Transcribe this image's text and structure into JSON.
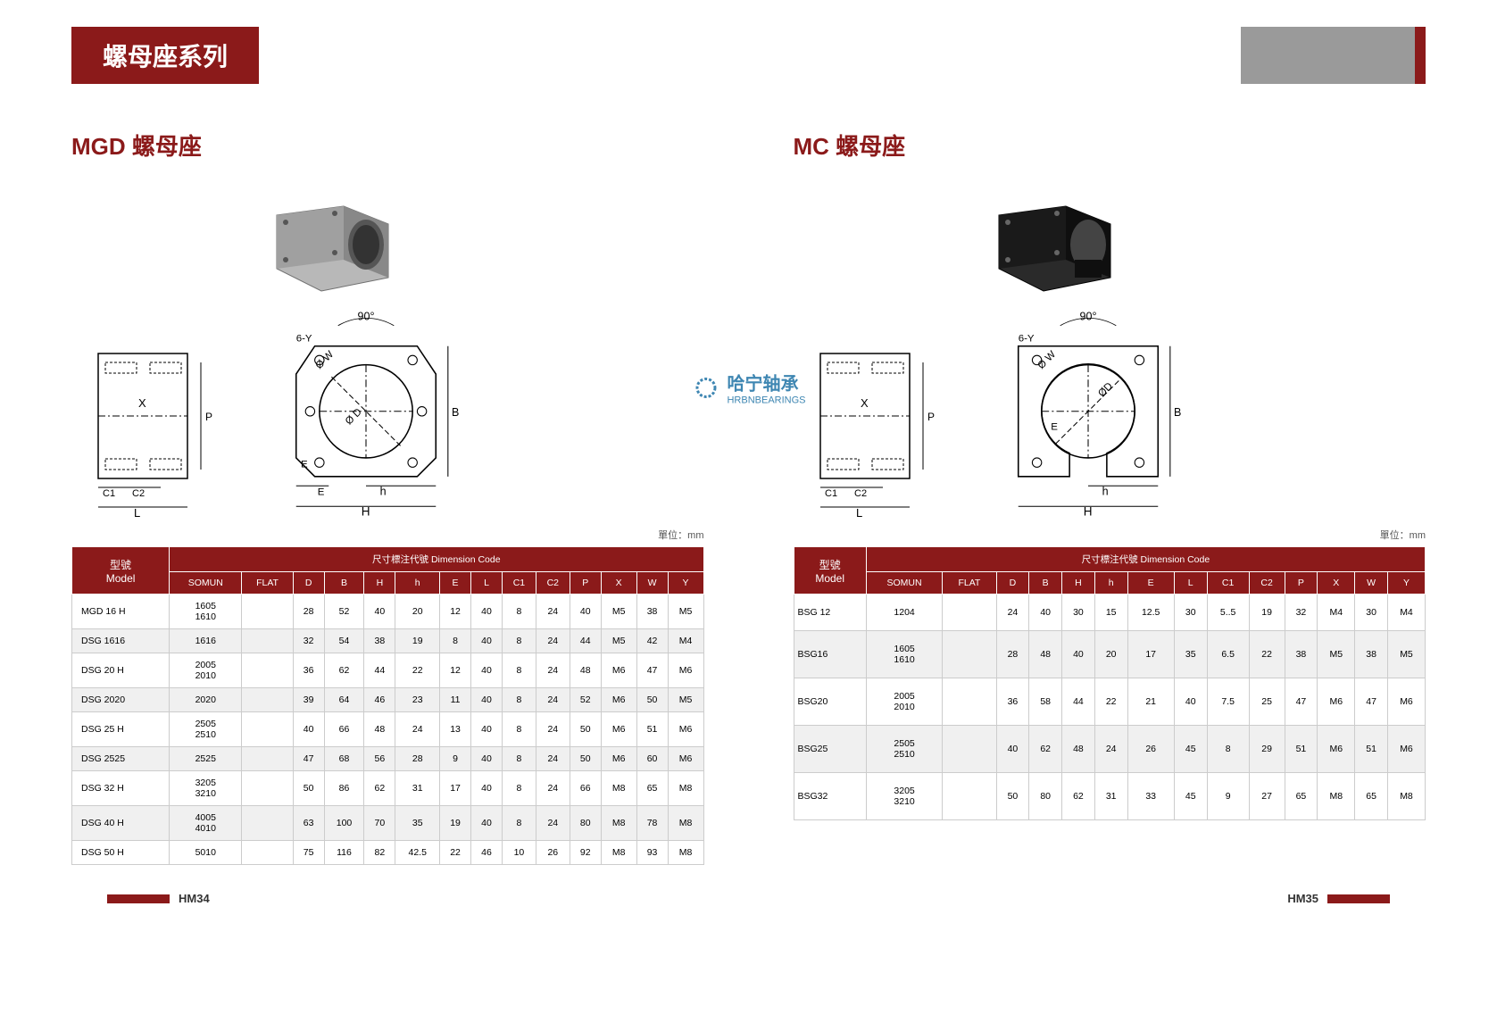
{
  "header": {
    "title": "螺母座系列"
  },
  "left": {
    "title": "MGD 螺母座",
    "unit": "單位：mm",
    "table": {
      "header_main": "尺寸標注代號 Dimension Code",
      "model_label": "型號",
      "model_sub": "Model",
      "columns": [
        "SOMUN",
        "FLAT",
        "D",
        "B",
        "H",
        "h",
        "E",
        "L",
        "C1",
        "C2",
        "P",
        "X",
        "W",
        "Y"
      ],
      "rows": [
        {
          "model": "MGD 16 H",
          "cells": [
            "1605\n1610",
            "",
            "28",
            "52",
            "40",
            "20",
            "12",
            "40",
            "8",
            "24",
            "40",
            "M5",
            "38",
            "M5"
          ]
        },
        {
          "model": "DSG 1616",
          "cells": [
            "1616",
            "",
            "32",
            "54",
            "38",
            "19",
            "8",
            "40",
            "8",
            "24",
            "44",
            "M5",
            "42",
            "M4"
          ]
        },
        {
          "model": "DSG 20 H",
          "cells": [
            "2005\n2010",
            "",
            "36",
            "62",
            "44",
            "22",
            "12",
            "40",
            "8",
            "24",
            "48",
            "M6",
            "47",
            "M6"
          ]
        },
        {
          "model": "DSG 2020",
          "cells": [
            "2020",
            "",
            "39",
            "64",
            "46",
            "23",
            "11",
            "40",
            "8",
            "24",
            "52",
            "M6",
            "50",
            "M5"
          ]
        },
        {
          "model": "DSG 25 H",
          "cells": [
            "2505\n2510",
            "",
            "40",
            "66",
            "48",
            "24",
            "13",
            "40",
            "8",
            "24",
            "50",
            "M6",
            "51",
            "M6"
          ]
        },
        {
          "model": "DSG 2525",
          "cells": [
            "2525",
            "",
            "47",
            "68",
            "56",
            "28",
            "9",
            "40",
            "8",
            "24",
            "50",
            "M6",
            "60",
            "M6"
          ]
        },
        {
          "model": "DSG 32 H",
          "cells": [
            "3205\n3210",
            "",
            "50",
            "86",
            "62",
            "31",
            "17",
            "40",
            "8",
            "24",
            "66",
            "M8",
            "65",
            "M8"
          ]
        },
        {
          "model": "DSG 40 H",
          "cells": [
            "4005\n4010",
            "",
            "63",
            "100",
            "70",
            "35",
            "19",
            "40",
            "8",
            "24",
            "80",
            "M8",
            "78",
            "M8"
          ]
        },
        {
          "model": "DSG 50 H",
          "cells": [
            "5010",
            "",
            "75",
            "116",
            "82",
            "42.5",
            "22",
            "46",
            "10",
            "26",
            "92",
            "M8",
            "93",
            "M8"
          ]
        }
      ]
    }
  },
  "right": {
    "title": "MC 螺母座",
    "unit": "單位：mm",
    "table": {
      "header_main": "尺寸標注代號 Dimension Code",
      "model_label": "型號",
      "model_sub": "Model",
      "columns": [
        "SOMUN",
        "FLAT",
        "D",
        "B",
        "H",
        "h",
        "E",
        "L",
        "C1",
        "C2",
        "P",
        "X",
        "W",
        "Y"
      ],
      "rows": [
        {
          "model": "BSG 12",
          "cells": [
            "1204",
            "",
            "24",
            "40",
            "30",
            "15",
            "12.5",
            "30",
            "5..5",
            "19",
            "32",
            "M4",
            "30",
            "M4"
          ]
        },
        {
          "model": "BSG16",
          "cells": [
            "1605\n1610",
            "",
            "28",
            "48",
            "40",
            "20",
            "17",
            "35",
            "6.5",
            "22",
            "38",
            "M5",
            "38",
            "M5"
          ]
        },
        {
          "model": "BSG20",
          "cells": [
            "2005\n2010",
            "",
            "36",
            "58",
            "44",
            "22",
            "21",
            "40",
            "7.5",
            "25",
            "47",
            "M6",
            "47",
            "M6"
          ]
        },
        {
          "model": "BSG25",
          "cells": [
            "2505\n2510",
            "",
            "40",
            "62",
            "48",
            "24",
            "26",
            "45",
            "8",
            "29",
            "51",
            "M6",
            "51",
            "M6"
          ]
        },
        {
          "model": "BSG32",
          "cells": [
            "3205\n3210",
            "",
            "50",
            "80",
            "62",
            "31",
            "33",
            "45",
            "9",
            "27",
            "65",
            "M8",
            "65",
            "M8"
          ]
        }
      ]
    }
  },
  "watermark": {
    "brand": "HRBN",
    "cn": "哈宁轴承",
    "en": "HRBNBEARINGS"
  },
  "footer": {
    "left": "HM34",
    "right": "HM35"
  },
  "diagram_labels": {
    "angle": "90°",
    "sixY": "6-Y",
    "phiW": "Ø W",
    "phiD": "Ø D",
    "X": "X",
    "P": "P",
    "B": "B",
    "E": "E",
    "h": "h",
    "H": "H",
    "C1": "C1",
    "C2": "C2",
    "L": "L"
  },
  "colors": {
    "brand_red": "#8b1a1a",
    "gray": "#9a9a9a",
    "row_alt": "#f0f0f0",
    "border": "#cccccc",
    "text": "#333333"
  }
}
